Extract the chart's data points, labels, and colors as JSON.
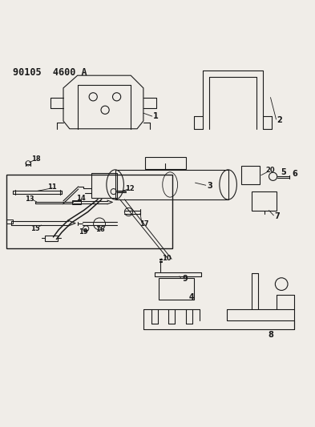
{
  "title": "90105  4600 A",
  "background_color": "#f0ede8",
  "fig_width": 3.93,
  "fig_height": 5.33,
  "dpi": 100
}
